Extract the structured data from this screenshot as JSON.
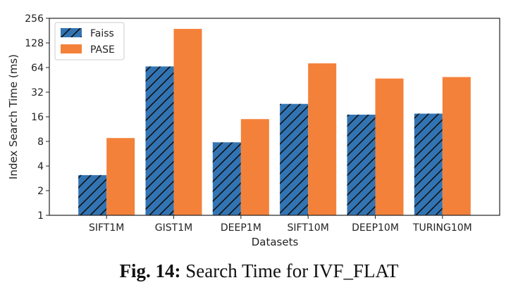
{
  "chart_data": {
    "type": "bar",
    "xlabel": "Datasets",
    "ylabel": "Index Search Time (ms)",
    "y_scale": "log2",
    "ylim": [
      1,
      256
    ],
    "yticks": [
      1,
      2,
      4,
      8,
      16,
      32,
      64,
      128,
      256
    ],
    "categories": [
      "SIFT1M",
      "GIST1M",
      "DEEP1M",
      "SIFT10M",
      "DEEP10M",
      "TURING10M"
    ],
    "series": [
      {
        "name": "Faiss",
        "color": "#3274b3",
        "hatch": "diagonal",
        "values": [
          3.1,
          66,
          7.8,
          23,
          17,
          17.5
        ]
      },
      {
        "name": "PASE",
        "color": "#f4813a",
        "hatch": "none",
        "values": [
          8.8,
          190,
          15,
          72,
          47,
          49
        ]
      }
    ],
    "legend_position": "top-left",
    "grid": false
  },
  "caption": {
    "prefix": "Fig. 14:",
    "text": "Search Time for IVF_FLAT"
  }
}
